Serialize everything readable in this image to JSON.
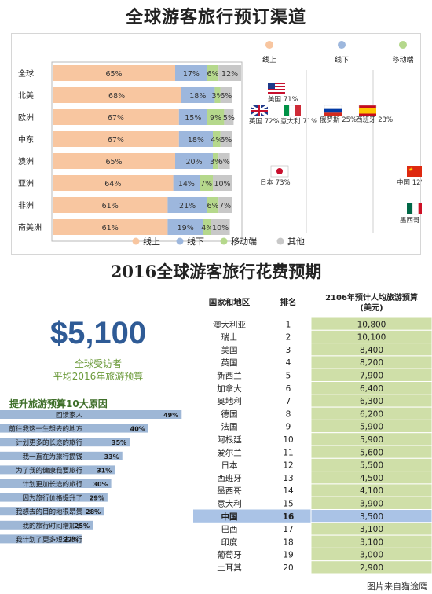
{
  "titles": {
    "top": "全球游客旅行预订渠道",
    "bottom": "2016全球游客旅行花费预期"
  },
  "channels_colors": {
    "online": "#f8c6a0",
    "offline": "#9db7dd",
    "mobile": "#b5d88c",
    "other": "#c8c8c8"
  },
  "chart_data": [
    {
      "type": "bar",
      "stacked": true,
      "orientation": "horizontal",
      "categories": [
        "全球",
        "北美",
        "欧洲",
        "中东",
        "澳洲",
        "亚洲",
        "非洲",
        "南美洲"
      ],
      "series": [
        {
          "name": "线上",
          "values": [
            65,
            68,
            67,
            67,
            65,
            64,
            61,
            61
          ]
        },
        {
          "name": "线下",
          "values": [
            17,
            18,
            15,
            18,
            20,
            14,
            21,
            19
          ]
        },
        {
          "name": "移动端",
          "values": [
            6,
            3,
            9,
            4,
            3,
            7,
            6,
            4
          ]
        },
        {
          "name": "其他",
          "values": [
            12,
            6,
            5,
            6,
            6,
            10,
            7,
            10
          ]
        }
      ],
      "value_labels": [
        [
          "65%",
          "17%",
          "6%",
          "12%"
        ],
        [
          "68%",
          "18%",
          "3%",
          "6%"
        ],
        [
          "67%",
          "15%",
          "9%",
          "5%"
        ],
        [
          "67%",
          "18%",
          "4%",
          "6%"
        ],
        [
          "65%",
          "20%",
          "3%",
          "6%"
        ],
        [
          "64%",
          "14%",
          "7%",
          "10%"
        ],
        [
          "61%",
          "21%",
          "6%",
          "7%"
        ],
        [
          "61%",
          "19%",
          "4%",
          "10%"
        ]
      ],
      "legend": [
        "线上",
        "线下",
        "移动端",
        "其他"
      ],
      "legend_position": "bottom",
      "column_headers": [
        "线上",
        "线下",
        "移动端"
      ],
      "country_callouts": [
        {
          "column": "线上",
          "country": "美国",
          "label": "美国 71%"
        },
        {
          "column": "线上",
          "country": "英国",
          "label": "英国 72%"
        },
        {
          "column": "线上",
          "country": "意大利",
          "label": "意大利 71%"
        },
        {
          "column": "线上",
          "country": "日本",
          "label": "日本 73%"
        },
        {
          "column": "线下",
          "country": "俄罗斯",
          "label": "俄罗斯 25%"
        },
        {
          "column": "线下",
          "country": "西班牙",
          "label": "西班牙 23%"
        },
        {
          "column": "移动端",
          "country": "中国",
          "label": "中国 12%"
        },
        {
          "column": "移动端",
          "country": "墨西哥",
          "label": "墨西哥 8%"
        }
      ]
    },
    {
      "type": "bar",
      "orientation": "horizontal",
      "title": "提升旅游预算10大原因",
      "categories": [
        "回馈家人",
        "前往我这一生想去的地方",
        "计划更多的长途的旅行",
        "我一直在为旅行攒钱",
        "为了我的健康我要旅行",
        "计划更加长途的旅行",
        "因为旅行价格提升了",
        "我想去的目的地很昂贵",
        "我的旅行时间增加了",
        "我计划了更多短途旅行"
      ],
      "values": [
        49,
        40,
        35,
        33,
        31,
        30,
        29,
        28,
        25,
        22
      ],
      "value_labels": [
        "49%",
        "40%",
        "35%",
        "33%",
        "31%",
        "30%",
        "29%",
        "28%",
        "25%",
        "22%"
      ],
      "xlim": [
        0,
        50
      ]
    },
    {
      "type": "table",
      "columns": [
        "国家和地区",
        "排名",
        "2106年预计人均旅游预算\n(美元)"
      ],
      "rows": [
        [
          "澳大利亚",
          "1",
          "10,800"
        ],
        [
          "瑞士",
          "2",
          "10,100"
        ],
        [
          "美国",
          "3",
          "8,400"
        ],
        [
          "英国",
          "4",
          "8,200"
        ],
        [
          "新西兰",
          "5",
          "7,900"
        ],
        [
          "加拿大",
          "6",
          "6,400"
        ],
        [
          "奥地利",
          "7",
          "6,300"
        ],
        [
          "德国",
          "8",
          "6,200"
        ],
        [
          "法国",
          "9",
          "5,900"
        ],
        [
          "阿根廷",
          "10",
          "5,900"
        ],
        [
          "爱尔兰",
          "11",
          "5,600"
        ],
        [
          "日本",
          "12",
          "5,500"
        ],
        [
          "西班牙",
          "13",
          "4,500"
        ],
        [
          "墨西哥",
          "14",
          "4,100"
        ],
        [
          "意大利",
          "15",
          "3,900"
        ],
        [
          "中国",
          "16",
          "3,500"
        ],
        [
          "巴西",
          "17",
          "3,100"
        ],
        [
          "印度",
          "18",
          "3,100"
        ],
        [
          "葡萄牙",
          "19",
          "3,000"
        ],
        [
          "土耳其",
          "20",
          "2,900"
        ]
      ],
      "highlight_row": "中国"
    }
  ],
  "summary": {
    "amount": "$5,100",
    "line1": "全球受访者",
    "line2": "平均2016年旅游预算"
  },
  "credit": "图片来自猫途鹰"
}
